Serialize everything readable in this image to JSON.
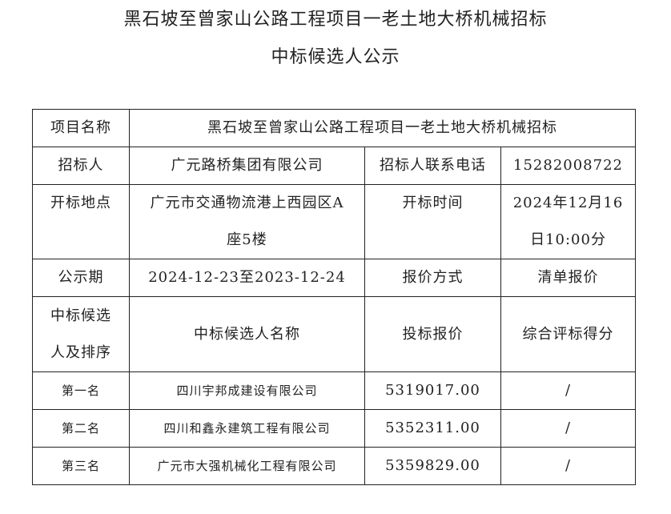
{
  "title": {
    "line1": "黑石坡至曾家山公路工程项目一老土地大桥机械招标",
    "line2": "中标候选人公示"
  },
  "info": {
    "project_name_label": "项目名称",
    "project_name": "黑石坡至曾家山公路工程项目一老土地大桥机械招标",
    "tenderer_label": "招标人",
    "tenderer": "广元路桥集团有限公司",
    "phone_label": "招标人联系电话",
    "phone": "15282008722",
    "location_label": "开标地点",
    "location_line1": "广元市交通物流港上西园区A",
    "location_line2": "座5楼",
    "time_label": "开标时间",
    "time_line1": "2024年12月16",
    "time_line2": "日10:00分",
    "period_label": "公示期",
    "period": "2024-12-23至2023-12-24",
    "quote_method_label": "报价方式",
    "quote_method": "清单报价"
  },
  "candidates": {
    "header": {
      "rank_line1": "中标候选",
      "rank_line2": "人及排序",
      "name": "中标候选人名称",
      "bid": "投标报价",
      "score": "综合评标得分"
    },
    "rows": [
      {
        "rank": "第一名",
        "name": "四川宇邦成建设有限公司",
        "bid": "5319017.00",
        "score": "/"
      },
      {
        "rank": "第二名",
        "name": "四川和鑫永建筑工程有限公司",
        "bid": "5352311.00",
        "score": "/"
      },
      {
        "rank": "第三名",
        "name": "广元市大强机械化工程有限公司",
        "bid": "5359829.00",
        "score": "/"
      }
    ]
  }
}
